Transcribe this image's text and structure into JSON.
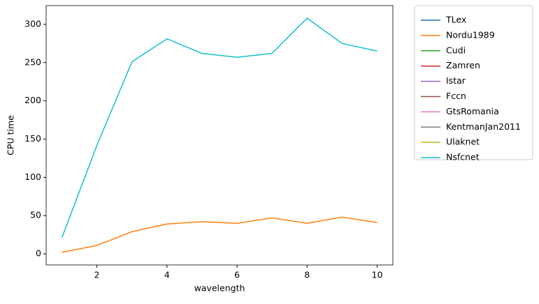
{
  "chart_data": {
    "type": "line",
    "x": [
      1,
      2,
      3,
      4,
      5,
      6,
      7,
      8,
      9,
      10
    ],
    "xlabel": "wavelength",
    "ylabel": "CPU time",
    "xlim": [
      0.55,
      10.45
    ],
    "ylim": [
      -14.5,
      324.5
    ],
    "xticks": [
      2,
      4,
      6,
      8,
      10
    ],
    "yticks": [
      0,
      50,
      100,
      150,
      200,
      250,
      300
    ],
    "grid": false,
    "legend": "outside upper right",
    "series": [
      {
        "name": "TLex",
        "color": "#1f77b4",
        "values": [
          null,
          null,
          null,
          null,
          null,
          null,
          null,
          null,
          null,
          null
        ]
      },
      {
        "name": "Nordu1989",
        "color": "#ff7f0e",
        "values": [
          2,
          11,
          29,
          39,
          42,
          40,
          47,
          40,
          48,
          41
        ]
      },
      {
        "name": "Cudi",
        "color": "#2ca02c",
        "values": [
          null,
          null,
          null,
          null,
          null,
          null,
          null,
          null,
          null,
          null
        ]
      },
      {
        "name": "Zamren",
        "color": "#d62728",
        "values": [
          null,
          null,
          null,
          null,
          null,
          null,
          null,
          null,
          null,
          null
        ]
      },
      {
        "name": "Istar",
        "color": "#9467bd",
        "values": [
          null,
          null,
          null,
          null,
          null,
          null,
          null,
          null,
          null,
          null
        ]
      },
      {
        "name": "Fccn",
        "color": "#8c564b",
        "values": [
          null,
          null,
          null,
          null,
          null,
          null,
          null,
          null,
          null,
          null
        ]
      },
      {
        "name": "GtsRomania",
        "color": "#e377c2",
        "values": [
          null,
          null,
          null,
          null,
          null,
          null,
          null,
          null,
          null,
          null
        ]
      },
      {
        "name": "KentmanJan2011",
        "color": "#7f7f7f",
        "values": [
          null,
          null,
          null,
          null,
          null,
          null,
          null,
          null,
          null,
          null
        ]
      },
      {
        "name": "Ulaknet",
        "color": "#bcbd22",
        "values": [
          null,
          null,
          null,
          null,
          null,
          null,
          null,
          null,
          null,
          null
        ]
      },
      {
        "name": "Nsfcnet",
        "color": "#17becf",
        "values": [
          21,
          142,
          251,
          281,
          262,
          257,
          262,
          308,
          275,
          265
        ]
      }
    ]
  }
}
